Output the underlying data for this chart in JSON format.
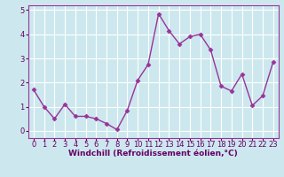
{
  "x": [
    0,
    1,
    2,
    3,
    4,
    5,
    6,
    7,
    8,
    9,
    10,
    11,
    12,
    13,
    14,
    15,
    16,
    17,
    18,
    19,
    20,
    21,
    22,
    23
  ],
  "y": [
    1.7,
    1.0,
    0.5,
    1.1,
    0.6,
    0.6,
    0.5,
    0.3,
    0.05,
    0.85,
    2.1,
    2.75,
    4.85,
    4.15,
    3.6,
    3.9,
    4.0,
    3.35,
    1.85,
    1.65,
    2.35,
    1.05,
    1.45,
    2.85
  ],
  "xlabel": "Windchill (Refroidissement éolien,°C)",
  "ylim": [
    -0.3,
    5.2
  ],
  "xlim": [
    -0.5,
    23.5
  ],
  "yticks": [
    0,
    1,
    2,
    3,
    4,
    5
  ],
  "xticks": [
    0,
    1,
    2,
    3,
    4,
    5,
    6,
    7,
    8,
    9,
    10,
    11,
    12,
    13,
    14,
    15,
    16,
    17,
    18,
    19,
    20,
    21,
    22,
    23
  ],
  "line_color": "#993399",
  "marker": "D",
  "marker_size": 2.5,
  "bg_color": "#cce8ee",
  "grid_color": "#ffffff",
  "xlabel_fontsize": 6.5,
  "tick_fontsize": 6,
  "line_width": 1.0,
  "text_color": "#660066",
  "spine_color": "#993399"
}
